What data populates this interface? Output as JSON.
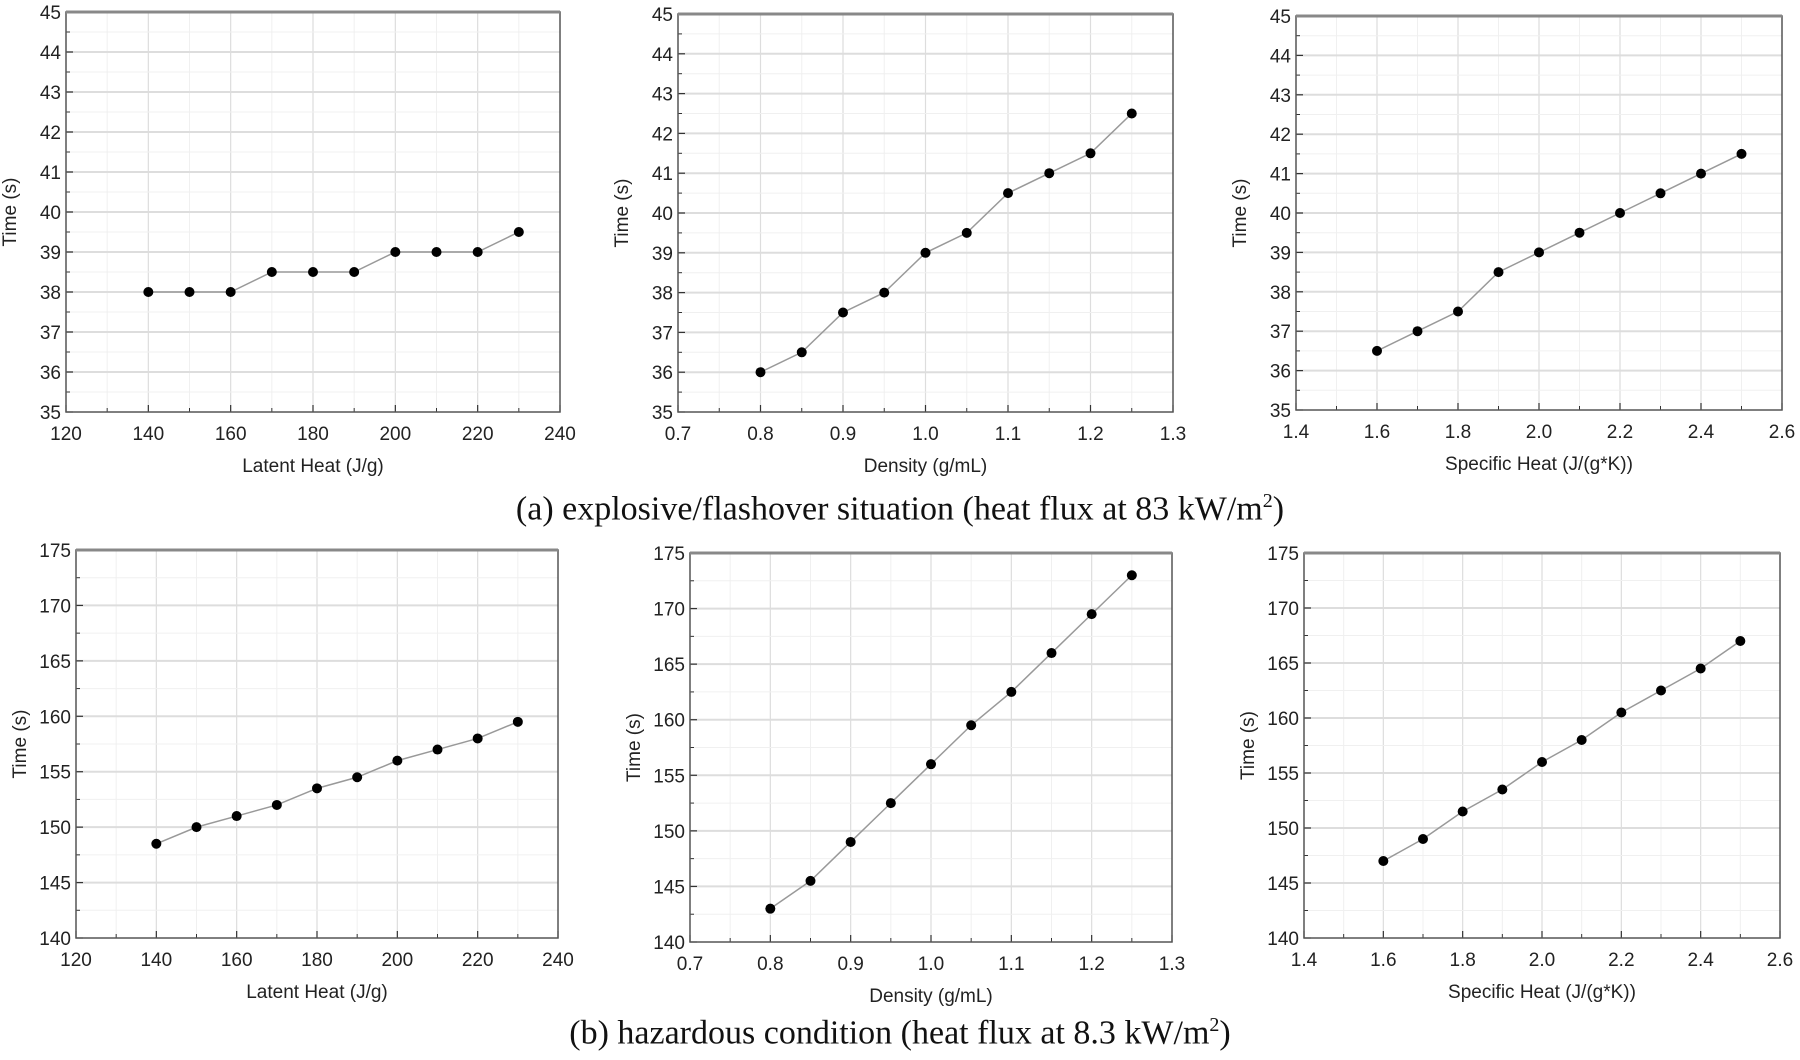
{
  "captions": {
    "a": {
      "text": "(a) explosive/flashover  situation (heat flux at 83 kW/m",
      "sup": "2",
      "end": ")"
    },
    "b": {
      "text": "(b) hazardous condition (heat flux at 8.3 kW/m",
      "sup": "2",
      "end": ")"
    }
  },
  "chart_data": [
    {
      "type": "line",
      "row": "a",
      "xlabel": "Latent Heat (J/g)",
      "ylabel": "Time (s)",
      "xlim": [
        120,
        240
      ],
      "ylim": [
        35,
        45
      ],
      "xticks": [
        "120",
        "140",
        "160",
        "180",
        "200",
        "220",
        "240"
      ],
      "yticks": [
        "35",
        "36",
        "37",
        "38",
        "39",
        "40",
        "41",
        "42",
        "43",
        "44",
        "45"
      ],
      "x": [
        140,
        150,
        160,
        170,
        180,
        190,
        200,
        210,
        220,
        230
      ],
      "y": [
        38,
        38,
        38,
        38.5,
        38.5,
        38.5,
        39,
        39,
        39,
        39.5
      ]
    },
    {
      "type": "line",
      "row": "a",
      "xlabel": "Density (g/mL)",
      "ylabel": "Time (s)",
      "xlim": [
        0.7,
        1.3
      ],
      "ylim": [
        35,
        45
      ],
      "xticks": [
        "0.7",
        "0.8",
        "0.9",
        "1.0",
        "1.1",
        "1.2",
        "1.3"
      ],
      "yticks": [
        "35",
        "36",
        "37",
        "38",
        "39",
        "40",
        "41",
        "42",
        "43",
        "44",
        "45"
      ],
      "x": [
        0.8,
        0.85,
        0.9,
        0.95,
        1.0,
        1.05,
        1.1,
        1.15,
        1.2,
        1.25
      ],
      "y": [
        36,
        36.5,
        37.5,
        38,
        39,
        39.5,
        40.5,
        41,
        41.5,
        42.5
      ]
    },
    {
      "type": "line",
      "row": "a",
      "xlabel": "Specific Heat (J/(g*K))",
      "ylabel": "Time (s)",
      "xlim": [
        1.4,
        2.6
      ],
      "ylim": [
        35,
        45
      ],
      "xticks": [
        "1.4",
        "1.6",
        "1.8",
        "2.0",
        "2.2",
        "2.4",
        "2.6"
      ],
      "yticks": [
        "35",
        "36",
        "37",
        "38",
        "39",
        "40",
        "41",
        "42",
        "43",
        "44",
        "45"
      ],
      "x": [
        1.6,
        1.7,
        1.8,
        1.9,
        2.0,
        2.1,
        2.2,
        2.3,
        2.4,
        2.5
      ],
      "y": [
        36.5,
        37,
        37.5,
        38.5,
        39,
        39.5,
        40,
        40.5,
        41,
        41.5
      ]
    },
    {
      "type": "line",
      "row": "b",
      "xlabel": "Latent Heat (J/g)",
      "ylabel": "Time (s)",
      "xlim": [
        120,
        240
      ],
      "ylim": [
        140,
        175
      ],
      "xticks": [
        "120",
        "140",
        "160",
        "180",
        "200",
        "220",
        "240"
      ],
      "yticks": [
        "140",
        "145",
        "150",
        "155",
        "160",
        "165",
        "170",
        "175"
      ],
      "x": [
        140,
        150,
        160,
        170,
        180,
        190,
        200,
        210,
        220,
        230
      ],
      "y": [
        148.5,
        150,
        151,
        152,
        153.5,
        154.5,
        156,
        157,
        158,
        159.5
      ]
    },
    {
      "type": "line",
      "row": "b",
      "xlabel": "Density (g/mL)",
      "ylabel": "Time (s)",
      "xlim": [
        0.7,
        1.3
      ],
      "ylim": [
        140,
        175
      ],
      "xticks": [
        "0.7",
        "0.8",
        "0.9",
        "1.0",
        "1.1",
        "1.2",
        "1.3"
      ],
      "yticks": [
        "140",
        "145",
        "150",
        "155",
        "160",
        "165",
        "170",
        "175"
      ],
      "x": [
        0.8,
        0.85,
        0.9,
        0.95,
        1.0,
        1.05,
        1.1,
        1.15,
        1.2,
        1.25
      ],
      "y": [
        143,
        145.5,
        149,
        152.5,
        156,
        159.5,
        162.5,
        166,
        169.5,
        173
      ]
    },
    {
      "type": "line",
      "row": "b",
      "xlabel": "Specific Heat (J/(g*K))",
      "ylabel": "Time (s)",
      "xlim": [
        1.4,
        2.6
      ],
      "ylim": [
        140,
        175
      ],
      "xticks": [
        "1.4",
        "1.6",
        "1.8",
        "2.0",
        "2.2",
        "2.4",
        "2.6"
      ],
      "yticks": [
        "140",
        "145",
        "150",
        "155",
        "160",
        "165",
        "170",
        "175"
      ],
      "x": [
        1.6,
        1.7,
        1.8,
        1.9,
        2.0,
        2.1,
        2.2,
        2.3,
        2.4,
        2.5
      ],
      "y": [
        147,
        149,
        151.5,
        153.5,
        156,
        158,
        160.5,
        162.5,
        164.5,
        167
      ]
    }
  ]
}
